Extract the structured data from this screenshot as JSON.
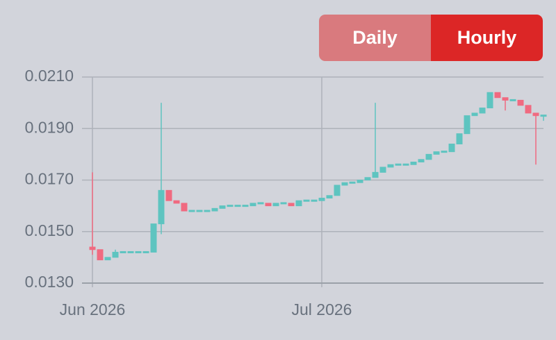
{
  "controls": [
    "Daily",
    "Hourly"
  ],
  "chart_data": {
    "type": "candlestick",
    "categories": [
      "Jun 2026",
      null,
      null,
      null,
      null,
      null,
      null,
      null,
      null,
      null,
      null,
      null,
      null,
      null,
      null,
      null,
      null,
      null,
      null,
      null,
      null,
      null,
      null,
      null,
      null,
      null,
      null,
      null,
      null,
      null,
      "Jul 2026",
      null,
      null,
      null,
      null,
      null,
      null,
      null,
      null,
      null,
      null,
      null,
      null,
      null,
      null,
      null,
      null,
      null,
      null,
      null,
      null,
      null,
      null,
      null,
      null,
      null,
      null,
      null,
      null,
      null
    ],
    "series": [
      {
        "up_color": "#5ec4c0",
        "down_color": "#f06a80",
        "open": [
          0.0144,
          0.0143,
          0.0139,
          0.014,
          0.0142,
          0.0142,
          0.0142,
          0.0142,
          0.0142,
          0.0153,
          0.0166,
          0.0162,
          0.0161,
          0.0158,
          0.0158,
          0.0158,
          0.0158,
          0.0159,
          0.016,
          0.016,
          0.016,
          0.016,
          0.0161,
          0.0161,
          0.016,
          0.0161,
          0.0161,
          0.016,
          0.0162,
          0.0162,
          0.0162,
          0.0163,
          0.0164,
          0.0168,
          0.0169,
          0.0169,
          0.017,
          0.0171,
          0.0173,
          0.0175,
          0.0176,
          0.0176,
          0.0176,
          0.0177,
          0.0178,
          0.018,
          0.0181,
          0.0181,
          0.0184,
          0.0188,
          0.0195,
          0.0196,
          0.0198,
          0.0204,
          0.0202,
          0.0201,
          0.0201,
          0.0199,
          0.0196,
          0.0195
        ],
        "high": [
          0.0173,
          0.0143,
          0.014,
          0.0143,
          0.0142,
          0.0142,
          0.0142,
          0.0142,
          0.0153,
          0.02,
          0.0166,
          0.0162,
          0.0161,
          0.0158,
          0.0158,
          0.0158,
          0.0159,
          0.016,
          0.016,
          0.016,
          0.016,
          0.0161,
          0.0161,
          0.0161,
          0.0161,
          0.0161,
          0.0161,
          0.0162,
          0.0162,
          0.0162,
          0.0163,
          0.0164,
          0.0168,
          0.0169,
          0.0169,
          0.017,
          0.0171,
          0.02,
          0.0175,
          0.0176,
          0.0176,
          0.0176,
          0.0177,
          0.0178,
          0.018,
          0.0181,
          0.0181,
          0.0184,
          0.0188,
          0.0195,
          0.0196,
          0.0198,
          0.0204,
          0.0204,
          0.0202,
          0.0201,
          0.0201,
          0.0199,
          0.0196,
          0.0195
        ],
        "low": [
          0.0141,
          0.0139,
          0.0139,
          0.014,
          0.0142,
          0.0142,
          0.0142,
          0.0142,
          0.0142,
          0.0149,
          0.0162,
          0.0161,
          0.0158,
          0.0158,
          0.0158,
          0.0158,
          0.0158,
          0.0159,
          0.016,
          0.016,
          0.016,
          0.016,
          0.0161,
          0.016,
          0.016,
          0.0161,
          0.016,
          0.016,
          0.0162,
          0.0162,
          0.0162,
          0.0163,
          0.0164,
          0.0168,
          0.0169,
          0.0169,
          0.017,
          0.0171,
          0.0173,
          0.0175,
          0.0176,
          0.0176,
          0.0176,
          0.0177,
          0.0178,
          0.018,
          0.0181,
          0.0181,
          0.0184,
          0.0188,
          0.0195,
          0.0196,
          0.0198,
          0.0202,
          0.0197,
          0.0201,
          0.0199,
          0.0196,
          0.0176,
          0.0193
        ],
        "close": [
          0.0143,
          0.0139,
          0.014,
          0.0142,
          0.0142,
          0.0142,
          0.0142,
          0.0142,
          0.0153,
          0.0166,
          0.0162,
          0.0161,
          0.0158,
          0.0158,
          0.0158,
          0.0158,
          0.0159,
          0.016,
          0.016,
          0.016,
          0.016,
          0.0161,
          0.0161,
          0.016,
          0.0161,
          0.0161,
          0.016,
          0.0162,
          0.0162,
          0.0162,
          0.0163,
          0.0164,
          0.0168,
          0.0169,
          0.0169,
          0.017,
          0.0171,
          0.0173,
          0.0175,
          0.0176,
          0.0176,
          0.0176,
          0.0177,
          0.0178,
          0.018,
          0.0181,
          0.0181,
          0.0184,
          0.0188,
          0.0195,
          0.0196,
          0.0198,
          0.0204,
          0.0202,
          0.0201,
          0.0201,
          0.0199,
          0.0196,
          0.0195,
          0.0195
        ]
      }
    ],
    "ylim": [
      0.013,
      0.021
    ],
    "yticks": [
      {
        "value": 0.013,
        "label": "0.0130"
      },
      {
        "value": 0.015,
        "label": "0.0150"
      },
      {
        "value": 0.017,
        "label": "0.0170"
      },
      {
        "value": 0.019,
        "label": "0.0190"
      },
      {
        "value": 0.021,
        "label": "0.0210"
      }
    ],
    "grid": true
  }
}
